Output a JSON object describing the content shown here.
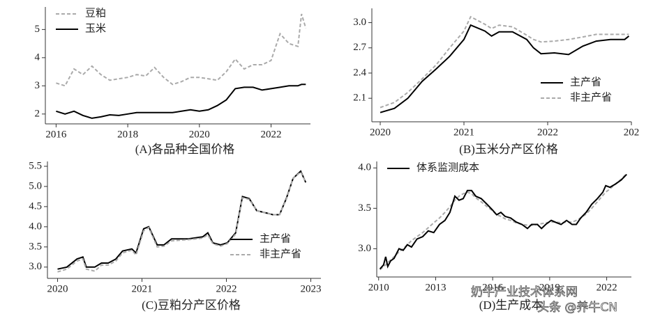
{
  "chart_data": [
    {
      "type": "line",
      "title": "(A)各品种全国价格",
      "legend": "upper left",
      "x": [
        2016.0,
        2016.25,
        2016.5,
        2016.75,
        2017.0,
        2017.25,
        2017.5,
        2017.75,
        2018.0,
        2018.25,
        2018.5,
        2018.75,
        2019.0,
        2019.25,
        2019.5,
        2019.75,
        2020.0,
        2020.25,
        2020.5,
        2020.75,
        2021.0,
        2021.25,
        2021.5,
        2021.75,
        2022.0,
        2022.25,
        2022.5,
        2022.75,
        2022.85,
        2022.97
      ],
      "series": [
        {
          "name": "豆粕",
          "color": "#aaaaaa",
          "dashed": true,
          "values": [
            3.1,
            3.0,
            3.6,
            3.4,
            3.7,
            3.4,
            3.2,
            3.25,
            3.3,
            3.4,
            3.35,
            3.65,
            3.3,
            3.05,
            3.15,
            3.3,
            3.3,
            3.25,
            3.2,
            3.5,
            3.95,
            3.6,
            3.75,
            3.75,
            3.9,
            4.85,
            4.5,
            4.4,
            5.55,
            5.05
          ]
        },
        {
          "name": "玉米",
          "color": "#000000",
          "dashed": false,
          "values": [
            2.1,
            2.0,
            2.1,
            1.95,
            1.85,
            1.9,
            1.97,
            1.95,
            2.0,
            2.05,
            2.05,
            2.05,
            2.05,
            2.05,
            2.1,
            2.15,
            2.1,
            2.15,
            2.3,
            2.5,
            2.9,
            2.95,
            2.95,
            2.85,
            2.9,
            2.95,
            3.0,
            3.0,
            3.05,
            3.05
          ]
        }
      ],
      "xlim": [
        2015.7,
        2023.1
      ],
      "xticks": [
        2016,
        2018,
        2020,
        2022
      ],
      "ylim": [
        1.65,
        5.8
      ],
      "yticks": [
        2,
        3,
        4,
        5
      ]
    },
    {
      "type": "line",
      "title": "(B)玉米分产区价格",
      "legend": "lower right",
      "x": [
        2020.0,
        2020.17,
        2020.33,
        2020.5,
        2020.67,
        2020.83,
        2021.0,
        2021.08,
        2021.25,
        2021.33,
        2021.42,
        2021.58,
        2021.75,
        2021.83,
        2021.92,
        2022.08,
        2022.25,
        2022.42,
        2022.58,
        2022.75,
        2022.92,
        2022.97
      ],
      "series": [
        {
          "name": "主产省",
          "color": "#000000",
          "dashed": false,
          "values": [
            1.93,
            1.98,
            2.1,
            2.3,
            2.45,
            2.6,
            2.8,
            2.97,
            2.9,
            2.84,
            2.89,
            2.89,
            2.8,
            2.7,
            2.63,
            2.64,
            2.62,
            2.72,
            2.78,
            2.8,
            2.8,
            2.84
          ]
        },
        {
          "name": "非主产省",
          "color": "#aaaaaa",
          "dashed": true,
          "values": [
            1.99,
            2.05,
            2.17,
            2.33,
            2.5,
            2.7,
            2.9,
            3.07,
            2.98,
            2.93,
            2.97,
            2.95,
            2.85,
            2.8,
            2.77,
            2.78,
            2.8,
            2.83,
            2.86,
            2.86,
            2.86,
            2.86
          ]
        }
      ],
      "xlim": [
        2019.9,
        2023
      ],
      "xticks": [
        2020,
        2021,
        2022,
        {
          "value": 2023,
          "label": "202"
        }
      ],
      "ylim": [
        1.82,
        3.17
      ],
      "yticks": [
        2.1,
        2.4,
        2.7,
        {
          "value": 3,
          "label": "3.0"
        }
      ]
    },
    {
      "type": "line",
      "title": "(C)豆粕分产区价格",
      "legend": "lower right",
      "x": [
        2020.0,
        2020.11,
        2020.23,
        2020.3,
        2020.34,
        2020.44,
        2020.52,
        2020.6,
        2020.69,
        2020.77,
        2020.88,
        2020.93,
        2021.02,
        2021.08,
        2021.18,
        2021.26,
        2021.35,
        2021.55,
        2021.72,
        2021.78,
        2021.84,
        2021.93,
        2022.01,
        2022.11,
        2022.19,
        2022.27,
        2022.36,
        2022.46,
        2022.55,
        2022.63,
        2022.71,
        2022.79,
        2022.88,
        2022.94
      ],
      "series": [
        {
          "name": "主产省",
          "color": "#000000",
          "dashed": false,
          "values": [
            2.95,
            3.0,
            3.2,
            3.25,
            3.0,
            3.0,
            3.1,
            3.1,
            3.2,
            3.4,
            3.45,
            3.35,
            3.95,
            4.0,
            3.55,
            3.55,
            3.7,
            3.7,
            3.75,
            3.85,
            3.6,
            3.55,
            3.6,
            3.85,
            4.75,
            4.7,
            4.4,
            4.35,
            4.3,
            4.3,
            4.7,
            5.2,
            5.38,
            5.1
          ]
        },
        {
          "name": "非主产省",
          "color": "#aaaaaa",
          "dashed": true,
          "values": [
            2.88,
            2.95,
            3.15,
            3.2,
            2.95,
            2.9,
            3.05,
            3.05,
            3.15,
            3.35,
            3.42,
            3.3,
            3.9,
            3.98,
            3.5,
            3.52,
            3.65,
            3.68,
            3.72,
            3.8,
            3.58,
            3.52,
            3.58,
            3.82,
            4.72,
            4.68,
            4.4,
            4.35,
            4.3,
            4.3,
            4.68,
            5.2,
            5.36,
            5.1
          ]
        }
      ],
      "xlim": [
        2019.88,
        2023.12
      ],
      "xticks": [
        2020,
        2021,
        2022,
        2023
      ],
      "ylim": [
        2.72,
        5.62
      ],
      "yticks": [
        {
          "value": 3,
          "label": "3.0"
        },
        3.5,
        {
          "value": 4,
          "label": "4.0"
        },
        4.5,
        {
          "value": 5,
          "label": "5.0"
        },
        5.5
      ]
    },
    {
      "type": "line",
      "title": "(D)生产成本",
      "legend": "upper left",
      "x": [
        2010.07,
        2010.26,
        2010.37,
        2010.48,
        2010.63,
        2010.81,
        2011.07,
        2011.29,
        2011.51,
        2011.73,
        2012.02,
        2012.32,
        2012.61,
        2012.9,
        2013.2,
        2013.49,
        2013.75,
        2014.01,
        2014.23,
        2014.45,
        2014.67,
        2014.89,
        2015.11,
        2015.4,
        2015.7,
        2015.99,
        2016.21,
        2016.43,
        2016.65,
        2016.95,
        2017.24,
        2017.54,
        2017.83,
        2018.05,
        2018.35,
        2018.57,
        2018.79,
        2019.08,
        2019.38,
        2019.6,
        2019.89,
        2020.18,
        2020.4,
        2020.63,
        2020.92,
        2021.21,
        2021.51,
        2021.8,
        2021.95,
        2022.17,
        2022.46,
        2022.76,
        2023.05
      ],
      "series": [
        {
          "color": "#aaaaaa",
          "dashed": true,
          "values": [
            2.74,
            2.78,
            2.8,
            2.83,
            2.86,
            2.9,
            2.96,
            3.0,
            3.05,
            3.1,
            3.15,
            3.2,
            3.26,
            3.32,
            3.38,
            3.45,
            3.52,
            3.6,
            3.65,
            3.68,
            3.7,
            3.68,
            3.63,
            3.58,
            3.52,
            3.47,
            3.42,
            3.4,
            3.37,
            3.35,
            3.32,
            3.3,
            3.29,
            3.29,
            3.3,
            3.31,
            3.32,
            3.33,
            3.33,
            3.32,
            3.33,
            3.33,
            3.35,
            3.38,
            3.43,
            3.5,
            3.58,
            3.66,
            3.7,
            3.74,
            3.8,
            3.86,
            3.93
          ]
        },
        {
          "name": "体系监测成本",
          "color": "#000000",
          "dashed": false,
          "values": [
            2.75,
            2.8,
            2.9,
            2.78,
            2.85,
            2.88,
            3.0,
            2.98,
            3.05,
            3.02,
            3.12,
            3.15,
            3.22,
            3.2,
            3.3,
            3.35,
            3.45,
            3.65,
            3.6,
            3.62,
            3.72,
            3.72,
            3.65,
            3.62,
            3.55,
            3.48,
            3.42,
            3.45,
            3.4,
            3.38,
            3.33,
            3.3,
            3.25,
            3.3,
            3.3,
            3.25,
            3.3,
            3.35,
            3.32,
            3.3,
            3.35,
            3.3,
            3.3,
            3.38,
            3.45,
            3.55,
            3.62,
            3.7,
            3.78,
            3.76,
            3.8,
            3.85,
            3.92
          ]
        }
      ],
      "xlim": [
        2009.9,
        2023.3
      ],
      "xticks": [
        2010,
        2013,
        2016,
        2019,
        2022
      ],
      "ylim": [
        2.65,
        4.08
      ],
      "yticks": [
        {
          "value": 3,
          "label": "3.0"
        },
        3.5,
        {
          "value": 4,
          "label": "4.0"
        }
      ]
    }
  ],
  "watermark": [
    "奶牛产业技术体系网",
    "头条 @养牛CN"
  ]
}
